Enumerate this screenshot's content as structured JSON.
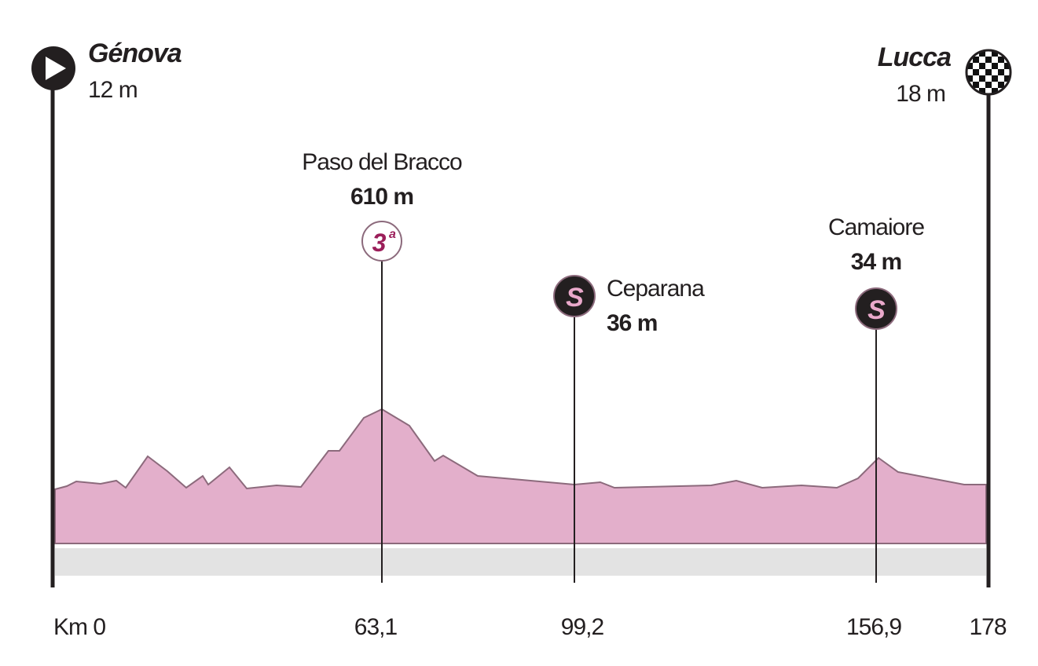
{
  "start": {
    "name": "Génova",
    "altitude": "12 m"
  },
  "finish": {
    "name": "Lucca",
    "altitude": "18 m"
  },
  "climbs": [
    {
      "name": "Paso del Bracco",
      "altitude": "610 m",
      "category": "3",
      "category_suffix": "a"
    }
  ],
  "sprints": [
    {
      "name": "Ceparana",
      "altitude": "36 m",
      "badge": "S"
    },
    {
      "name": "Camaiore",
      "altitude": "34 m",
      "badge": "S"
    }
  ],
  "km_labels": [
    "Km 0",
    "63,1",
    "99,2",
    "156,9",
    "178"
  ]
}
